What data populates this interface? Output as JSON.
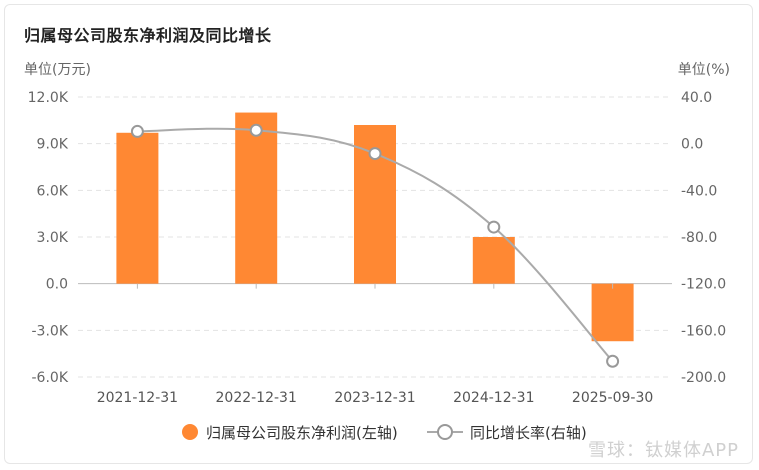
{
  "chart_data": {
    "type": "bar+line",
    "title": "归属母公司股东净利润及同比增长",
    "left_axis_unit": "单位(万元)",
    "right_axis_unit": "单位(%)",
    "categories": [
      "2021-12-31",
      "2022-12-31",
      "2023-12-31",
      "2024-12-31",
      "2025-09-30"
    ],
    "left_ticks": [
      "12.0K",
      "9.0K",
      "6.0K",
      "3.0K",
      "0.0",
      "-3.0K",
      "-6.0K"
    ],
    "right_ticks": [
      "40.0",
      "0.0",
      "-40.0",
      "-80.0",
      "-120.0",
      "-160.0",
      "-200.0"
    ],
    "ylim_left": [
      -6000,
      12000
    ],
    "ylim_right": [
      -200,
      40
    ],
    "series": [
      {
        "name": "归属母公司股东净利润(左轴)",
        "type": "bar",
        "axis": "left",
        "color": "#ff8833",
        "values": [
          9700,
          11000,
          10200,
          3000,
          -3700
        ]
      },
      {
        "name": "同比增长率(右轴)",
        "type": "line",
        "axis": "right",
        "color": "#aaaaaa",
        "values": [
          10.5,
          11.5,
          -8.5,
          -71.5,
          -186.5
        ]
      }
    ]
  },
  "watermark": "雪球：钛媒体APP"
}
